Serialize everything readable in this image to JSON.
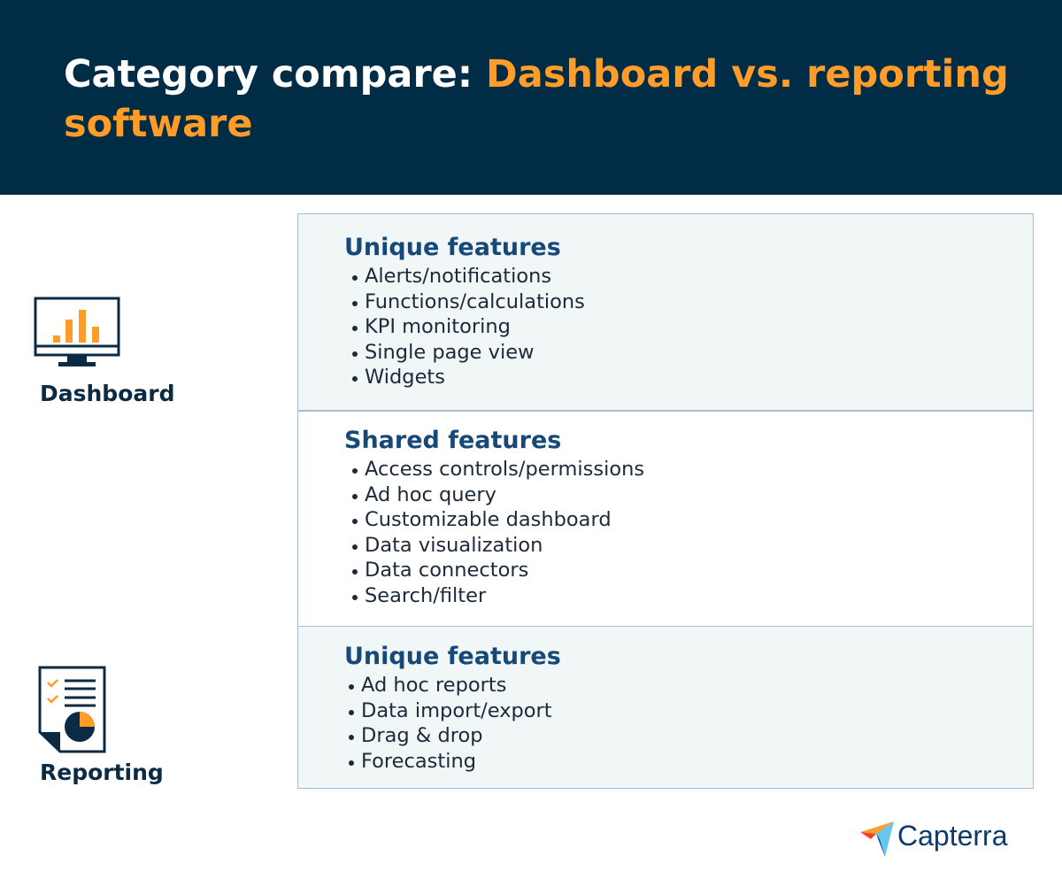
{
  "header": {
    "title_lead": "Category compare:",
    "title_highlight": "Dashboard vs. reporting software"
  },
  "sidebar": {
    "dashboard_label": "Dashboard",
    "reporting_label": "Reporting"
  },
  "sections": [
    {
      "heading": "Unique features",
      "items": [
        "Alerts/notifications",
        "Functions/calculations",
        "KPI monitoring",
        "Single page view",
        "Widgets"
      ]
    },
    {
      "heading": "Shared features",
      "items": [
        "Access controls/permissions",
        "Ad hoc query",
        "Customizable dashboard",
        "Data visualization",
        "Data connectors",
        "Search/filter"
      ]
    },
    {
      "heading": "Unique features",
      "items": [
        "Ad hoc reports",
        "Data import/export",
        "Drag & drop",
        "Forecasting"
      ]
    }
  ],
  "logo": {
    "text": "Capterra"
  }
}
